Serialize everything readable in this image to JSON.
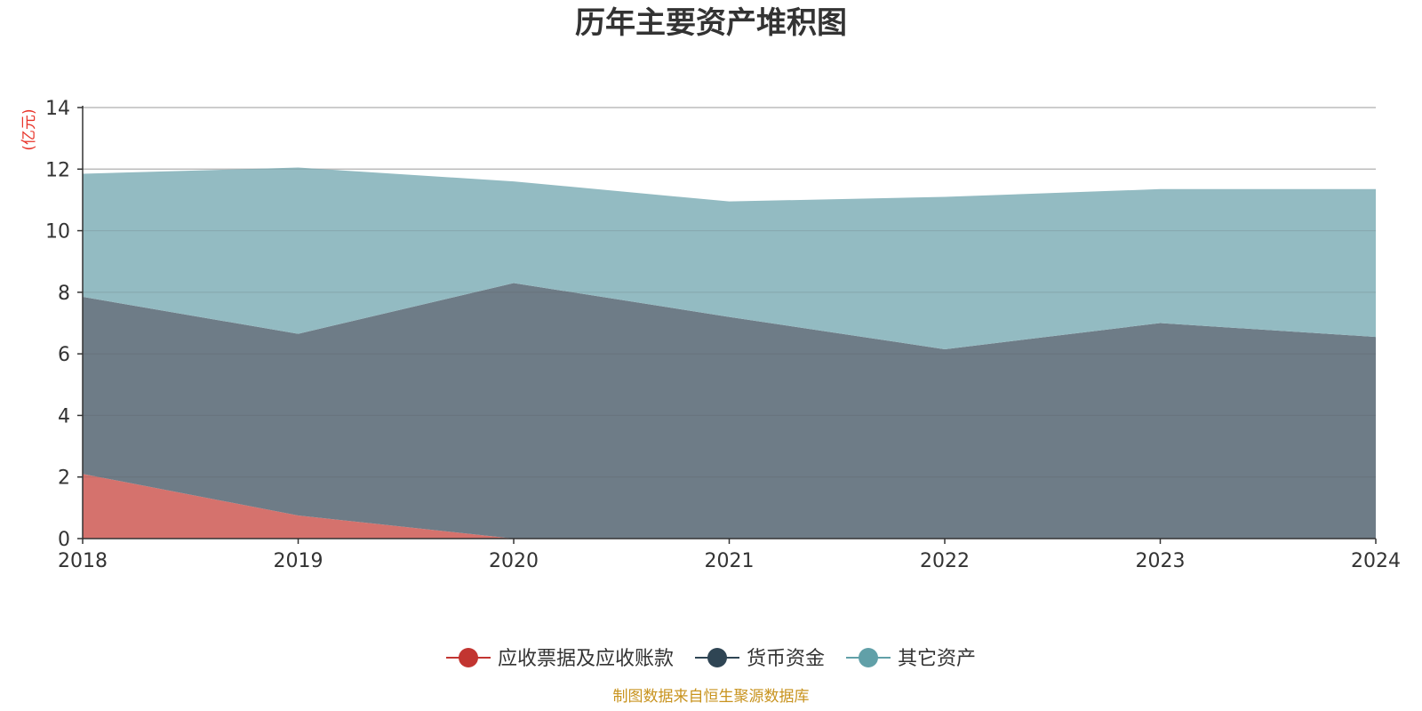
{
  "title": "历年主要资产堆积图",
  "source_note": "制图数据来自恒生聚源数据库",
  "chart_data": {
    "type": "area",
    "stacked": true,
    "title": "历年主要资产堆积图",
    "y_unit": "(亿元)",
    "x": [
      "2018",
      "2019",
      "2020",
      "2021",
      "2022",
      "2023",
      "2024"
    ],
    "ylim": [
      0,
      14
    ],
    "yticks": [
      0,
      2,
      4,
      6,
      8,
      10,
      12,
      14
    ],
    "grid": true,
    "legend_position": "bottom-center",
    "series": [
      {
        "name": "应收票据及应收账款",
        "color": "#c23531",
        "fill": "#d5726d",
        "values": [
          2.1,
          0.75,
          0.0,
          0.0,
          0.0,
          0.0,
          0.0
        ]
      },
      {
        "name": "货币资金",
        "color": "#2f4554",
        "fill": "#6e7c87",
        "values": [
          5.75,
          5.9,
          8.3,
          7.2,
          6.15,
          7.0,
          6.55
        ]
      },
      {
        "name": "其它资产",
        "color": "#61a0a8",
        "fill": "#93bbc2",
        "values": [
          4.0,
          5.4,
          3.3,
          3.75,
          4.95,
          4.35,
          4.8
        ]
      }
    ]
  }
}
